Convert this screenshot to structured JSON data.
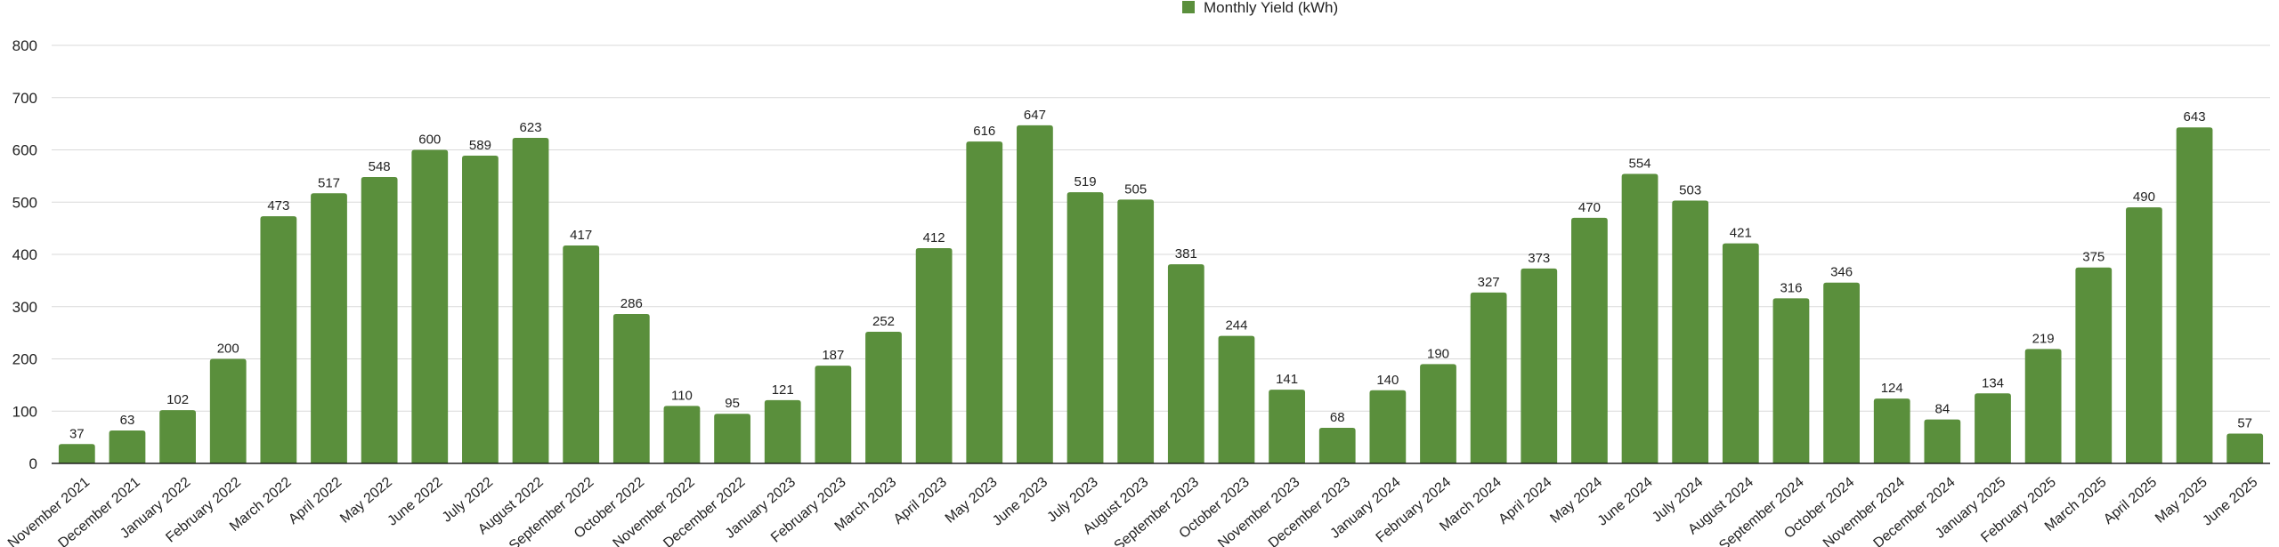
{
  "chart_data": {
    "type": "bar",
    "title": "",
    "xlabel": "",
    "ylabel": "",
    "ylim": [
      0,
      800
    ],
    "yticks": [
      0,
      100,
      200,
      300,
      400,
      500,
      600,
      700,
      800
    ],
    "grid": true,
    "legend_position": "top-center",
    "categories": [
      "November 2021",
      "December 2021",
      "January 2022",
      "February 2022",
      "March 2022",
      "April 2022",
      "May 2022",
      "June 2022",
      "July 2022",
      "August 2022",
      "September 2022",
      "October 2022",
      "November 2022",
      "December 2022",
      "January 2023",
      "February 2023",
      "March 2023",
      "April 2023",
      "May 2023",
      "June 2023",
      "July 2023",
      "August 2023",
      "September 2023",
      "October 2023",
      "November 2023",
      "December 2023",
      "January 2024",
      "February 2024",
      "March 2024",
      "April 2024",
      "May 2024",
      "June 2024",
      "July 2024",
      "August 2024",
      "September 2024",
      "October 2024",
      "November 2024",
      "December 2024",
      "January 2025",
      "February 2025",
      "March 2025",
      "April 2025",
      "May 2025",
      "June 2025"
    ],
    "series": [
      {
        "name": "Monthly Yield (kWh)",
        "color": "#5a8f3c",
        "values": [
          37,
          63,
          102,
          200,
          473,
          517,
          548,
          600,
          589,
          623,
          417,
          286,
          110,
          95,
          121,
          187,
          252,
          412,
          616,
          647,
          519,
          505,
          381,
          244,
          141,
          68,
          140,
          190,
          327,
          373,
          470,
          554,
          503,
          421,
          316,
          346,
          124,
          84,
          134,
          219,
          375,
          490,
          643,
          57
        ]
      }
    ]
  }
}
